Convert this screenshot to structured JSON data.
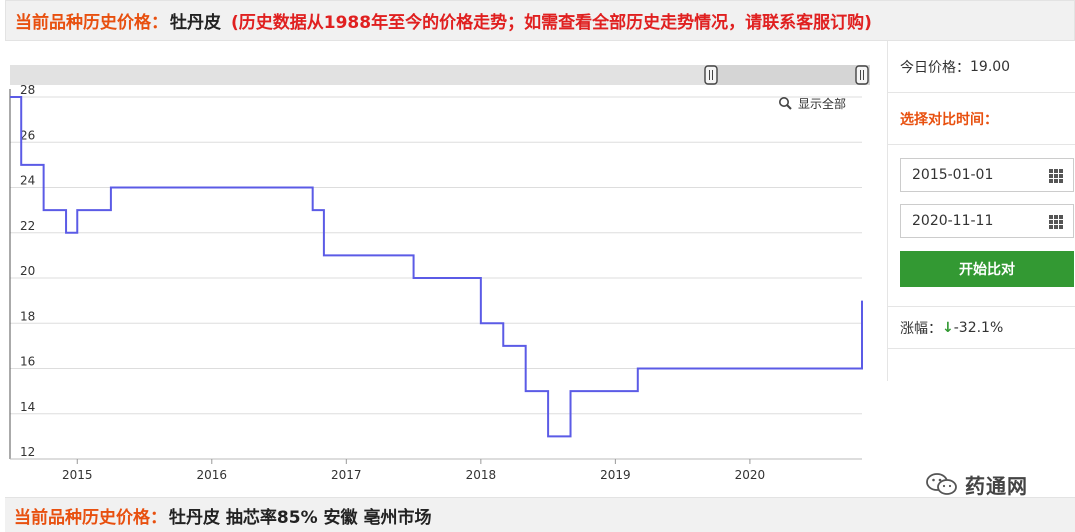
{
  "header": {
    "label": "当前品种历史价格：",
    "product": "牡丹皮",
    "note": "(历史数据从1988年至今的价格走势；如需查看全部历史走势情况，请联系客服订购)"
  },
  "toolbar": {
    "show_all": "显示全部"
  },
  "right_panel": {
    "today_label": "今日价格：",
    "today_price": "19.00",
    "select_label": "选择对比时间：",
    "start_date": "2015-01-01",
    "end_date": "2020-11-11",
    "start_button": "开始比对",
    "change_label": "涨幅：",
    "change_arrow": "↓",
    "change_value": "-32.1%"
  },
  "footer": {
    "label": "当前品种历史价格：",
    "product": "牡丹皮 抽芯率85% 安徽 亳州市场"
  },
  "watermark": {
    "text": "药通网"
  },
  "colors": {
    "accent": "#e8500f",
    "note": "#e02020",
    "line": "#5b5be6",
    "button": "#339933"
  },
  "chart_data": {
    "type": "line",
    "step": true,
    "x_ticks": [
      "2015",
      "2016",
      "2017",
      "2018",
      "2019",
      "2020"
    ],
    "y_ticks": [
      12,
      14,
      16,
      18,
      20,
      22,
      24,
      26,
      28
    ],
    "ylim": [
      12,
      28
    ],
    "xlim": [
      "2014-07",
      "2020-11"
    ],
    "grid": true,
    "series": [
      {
        "points": [
          [
            "2014-07",
            28
          ],
          [
            "2014-08",
            25
          ],
          [
            "2014-10",
            23
          ],
          [
            "2014-12",
            22
          ],
          [
            "2015-01",
            23
          ],
          [
            "2015-04",
            24
          ],
          [
            "2016-10",
            23
          ],
          [
            "2016-11",
            21
          ],
          [
            "2017-07",
            20
          ],
          [
            "2018-01",
            18
          ],
          [
            "2018-03",
            17
          ],
          [
            "2018-05",
            15
          ],
          [
            "2018-07",
            13
          ],
          [
            "2018-09",
            15
          ],
          [
            "2019-03",
            16
          ],
          [
            "2020-11",
            18
          ],
          [
            "2020-11",
            19
          ]
        ]
      }
    ]
  }
}
